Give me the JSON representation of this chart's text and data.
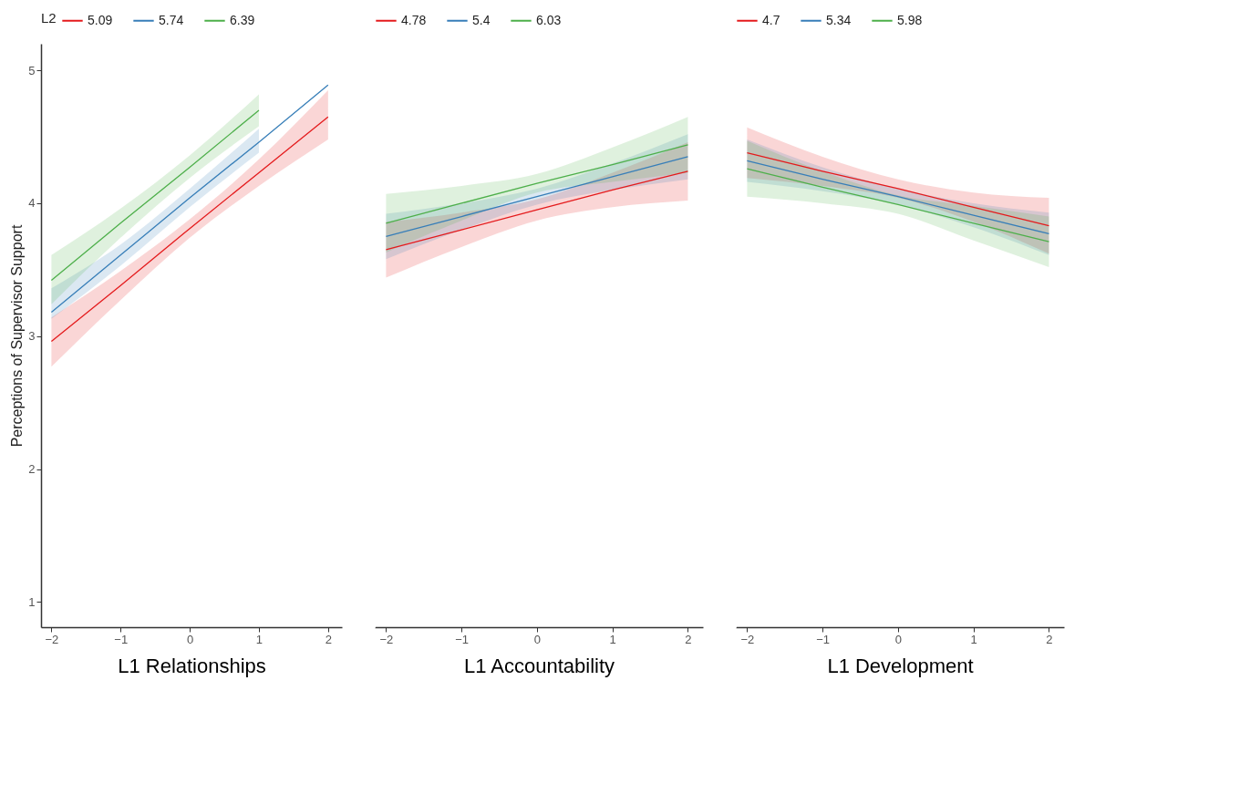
{
  "chart_data": [
    {
      "type": "line",
      "xlabel": "L1 Relationships",
      "ylabel": "Perceptions of Supervisor Support",
      "legend_title": "L2",
      "legend": "top",
      "grid": false,
      "xlim": [
        -2.15,
        2.2
      ],
      "ylim": [
        0.81,
        5.2
      ],
      "xticks": [
        -2,
        -1,
        0,
        1,
        2
      ],
      "yticks": [
        1,
        2,
        3,
        4,
        5
      ],
      "x": [
        -2,
        -1,
        0,
        1,
        2
      ],
      "series": [
        {
          "name": "5.09",
          "color": "#e41a1c",
          "values": [
            2.96,
            3.38,
            3.81,
            4.23,
            4.65
          ],
          "lower": [
            2.77,
            3.27,
            3.74,
            4.13,
            4.48
          ],
          "upper": [
            3.14,
            3.49,
            3.88,
            4.33,
            4.85
          ]
        },
        {
          "name": "5.74",
          "color": "#377eb8",
          "values": [
            3.18,
            3.61,
            4.04,
            4.46,
            4.89
          ],
          "lower": [
            3.13,
            3.53,
            3.97,
            4.38,
            null
          ],
          "upper": [
            3.36,
            3.69,
            4.11,
            4.56,
            null
          ]
        },
        {
          "name": "6.39",
          "color": "#4daf4a",
          "x": [
            -2,
            -1,
            0,
            1
          ],
          "values": [
            3.42,
            3.85,
            4.27,
            4.7
          ],
          "lower": [
            3.24,
            3.74,
            4.19,
            4.58
          ],
          "upper": [
            3.61,
            3.96,
            4.36,
            4.82
          ]
        }
      ]
    },
    {
      "type": "line",
      "xlabel": "L1 Accountability",
      "legend": "top",
      "grid": false,
      "tick_labels": "x",
      "xlim": [
        -2.15,
        2.2
      ],
      "ylim": [
        0.81,
        5.2
      ],
      "xticks": [
        -2,
        -1,
        0,
        1,
        2
      ],
      "x": [
        -2,
        -1,
        0,
        1,
        2
      ],
      "series": [
        {
          "name": "4.78",
          "color": "#e41a1c",
          "values": [
            3.65,
            3.8,
            3.95,
            4.1,
            4.24
          ],
          "lower": [
            3.44,
            3.67,
            3.87,
            3.97,
            4.02
          ],
          "upper": [
            3.86,
            3.93,
            4.03,
            4.23,
            4.46
          ]
        },
        {
          "name": "5.4",
          "color": "#377eb8",
          "values": [
            3.75,
            3.9,
            4.05,
            4.2,
            4.35
          ],
          "lower": [
            3.58,
            3.8,
            3.99,
            4.1,
            4.18
          ],
          "upper": [
            3.92,
            4.0,
            4.11,
            4.3,
            4.52
          ]
        },
        {
          "name": "6.03",
          "color": "#4daf4a",
          "values": [
            3.85,
            4.0,
            4.15,
            4.29,
            4.44
          ],
          "lower": [
            3.63,
            3.87,
            4.08,
            4.16,
            4.23
          ],
          "upper": [
            4.07,
            4.13,
            4.22,
            4.42,
            4.65
          ]
        }
      ]
    },
    {
      "type": "line",
      "xlabel": "L1 Development",
      "legend": "top",
      "grid": false,
      "tick_labels": "x",
      "xlim": [
        -2.15,
        2.2
      ],
      "ylim": [
        0.81,
        5.2
      ],
      "xticks": [
        -2,
        -1,
        0,
        1,
        2
      ],
      "x": [
        -2,
        -1,
        0,
        1,
        2
      ],
      "series": [
        {
          "name": "4.7",
          "color": "#e41a1c",
          "values": [
            4.38,
            4.24,
            4.11,
            3.97,
            3.83
          ],
          "lower": [
            4.19,
            4.13,
            4.04,
            3.86,
            3.62
          ],
          "upper": [
            4.57,
            4.35,
            4.18,
            4.08,
            4.04
          ]
        },
        {
          "name": "5.34",
          "color": "#377eb8",
          "values": [
            4.32,
            4.18,
            4.05,
            3.91,
            3.77
          ],
          "lower": [
            4.16,
            4.09,
            3.99,
            3.82,
            3.61
          ],
          "upper": [
            4.48,
            4.27,
            4.11,
            4.0,
            3.93
          ]
        },
        {
          "name": "5.98",
          "color": "#4daf4a",
          "values": [
            4.26,
            4.12,
            3.99,
            3.85,
            3.71
          ],
          "lower": [
            4.05,
            4.0,
            3.92,
            3.72,
            3.52
          ],
          "upper": [
            4.47,
            4.24,
            4.06,
            3.98,
            3.9
          ]
        }
      ]
    }
  ]
}
